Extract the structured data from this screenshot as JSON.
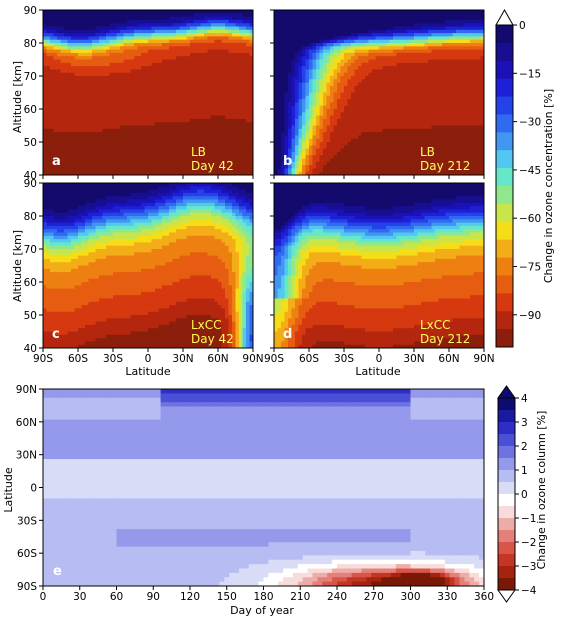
{
  "colors": {
    "ozone_colormap": [
      "#8b1f0b",
      "#b5260e",
      "#d6390f",
      "#e65c10",
      "#ee8012",
      "#f3ad16",
      "#f5dd18",
      "#c8e64a",
      "#8fe88c",
      "#66e8c8",
      "#52c8f0",
      "#4096f0",
      "#2f6af0",
      "#2542e8",
      "#1d20d6",
      "#1a12b6",
      "#180e92",
      "#140a6e"
    ],
    "column_colormap": [
      "#7a1806",
      "#a52410",
      "#c43623",
      "#d8554a",
      "#e47f79",
      "#eeaca8",
      "#f7dcdb",
      "#ffffff",
      "#d8dcf7",
      "#b7bdf2",
      "#9499ec",
      "#6e72e2",
      "#4a4fd8",
      "#2d2ec4",
      "#1a1aa0",
      "#0c0c70"
    ]
  },
  "panels": [
    {
      "label": "a",
      "scenario": "LB",
      "day": "Day 42"
    },
    {
      "label": "b",
      "scenario": "LB",
      "day": "Day 212"
    },
    {
      "label": "c",
      "scenario": "LxCC",
      "day": "Day 42"
    },
    {
      "label": "d",
      "scenario": "LxCC",
      "day": "Day 212"
    },
    {
      "label": "e"
    }
  ],
  "chart_data": [
    {
      "type": "heatmap",
      "panels": [
        "a",
        "b",
        "c",
        "d"
      ],
      "subtype": "filled-contour",
      "xlabel": "Latitude",
      "ylabel": "Altitude  [km]",
      "x_ticks": [
        "90S",
        "60S",
        "30S",
        "0",
        "30N",
        "60N",
        "90N"
      ],
      "y_ticks": [
        "40",
        "50",
        "60",
        "70",
        "80",
        "90"
      ],
      "xlim": [
        -90,
        90
      ],
      "ylim": [
        40,
        90
      ],
      "colorbar": {
        "label": "Change in ozone concentration  [%]",
        "ticks": [
          "0",
          "−15",
          "−30",
          "−45",
          "−60",
          "−75",
          "−90"
        ],
        "range": [
          -100,
          0
        ],
        "step": 5,
        "extend": "max"
      },
      "fields": {
        "LB_day42": {
          "profile_alt": [
            40,
            50,
            60,
            66,
            70,
            74,
            78,
            80,
            82,
            84,
            86,
            88,
            90
          ],
          "profile_val": [
            -97,
            -95,
            -94,
            -94,
            -93,
            -91,
            -86,
            -76,
            -52,
            -28,
            -10,
            -3,
            0
          ],
          "feature": "southern hemisphere mid-altitude change weaker above 72 km; uniform −95% below 70 km"
        },
        "LB_day212": {
          "profile_alt": [
            40,
            50,
            60,
            66,
            70,
            74,
            78,
            80,
            82,
            84,
            86,
            88,
            90
          ],
          "profile_val": [
            -97,
            -95,
            -94,
            -94,
            -93,
            -91,
            -86,
            -76,
            -52,
            -28,
            -10,
            -3,
            0
          ],
          "feature": "south polar night column near 0 to −40% extending down to 40 km"
        },
        "LxCC_day42": {
          "profile_alt": [
            40,
            45,
            50,
            55,
            60,
            65,
            70,
            75,
            78,
            80,
            82,
            84,
            86,
            88,
            90
          ],
          "profile_val": [
            -97,
            -94,
            -88,
            -84,
            -80,
            -76,
            -70,
            -55,
            -40,
            -30,
            -20,
            -12,
            -6,
            -2,
            0
          ],
          "feature": "north polar region near 0% at low altitude"
        },
        "LxCC_day212": {
          "profile_alt": [
            40,
            45,
            50,
            55,
            60,
            65,
            70,
            75,
            78,
            80,
            82,
            84,
            86,
            88,
            90
          ],
          "profile_val": [
            -97,
            -94,
            -88,
            -84,
            -80,
            -76,
            -70,
            -55,
            -40,
            -30,
            -20,
            -12,
            -6,
            -2,
            0
          ],
          "feature": "south polar near −80 to −50% column"
        }
      }
    },
    {
      "type": "heatmap",
      "panels": [
        "e"
      ],
      "subtype": "filled-contour",
      "xlabel": "Day of year",
      "ylabel": "Latitude",
      "x_ticks": [
        "0",
        "30",
        "60",
        "90",
        "120",
        "150",
        "180",
        "210",
        "240",
        "270",
        "300",
        "330",
        "360"
      ],
      "y_ticks": [
        "90S",
        "60S",
        "30S",
        "0",
        "30N",
        "60N",
        "90N"
      ],
      "xlim": [
        0,
        360
      ],
      "ylim": [
        -90,
        90
      ],
      "colorbar": {
        "label": "Change in ozone column  [%]",
        "ticks": [
          "4",
          "3",
          "2",
          "1",
          "0",
          "−1",
          "−2",
          "−3",
          "−4"
        ],
        "range": [
          -4,
          4
        ],
        "step": 0.5,
        "extend": "both"
      },
      "field_description": {
        "equatorial_band": "0 to 0.5% between 10S and 25N",
        "tropics_south": "0.5 to 1% from 50S to 5S",
        "southern_midlat_band": "1 to 2% near 40S-60S, days 60-300",
        "northern_extratropics": "1 to 2% from 25N to 90N",
        "north_polar_autumn": "2.5 to 3% near 90N, days 95-300",
        "south_polar_spring": "−1 to −3.5% near 70S-90S, days 140-350"
      }
    }
  ]
}
